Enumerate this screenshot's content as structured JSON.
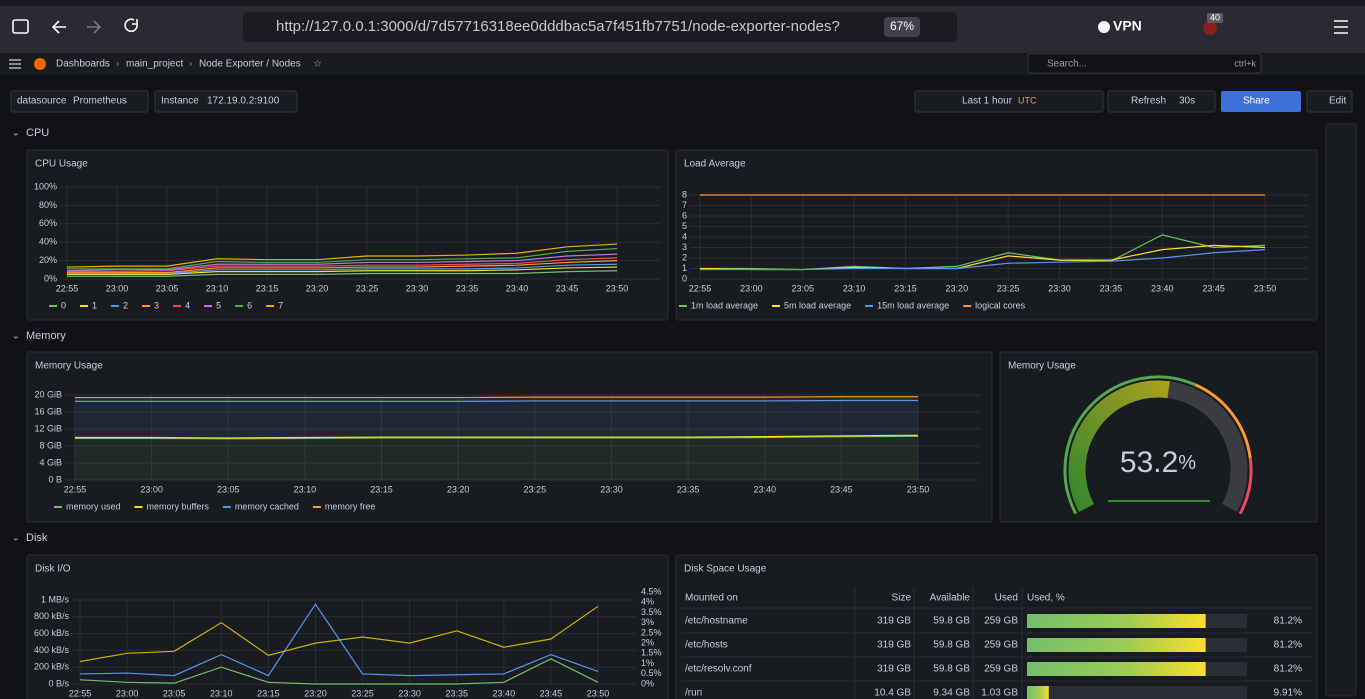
{
  "browser": {
    "url": "http://127.0.0.1:3000/d/7d57716318ee0dddbac5a7f451fb7751/node-exporter-nodes?",
    "zoom": "67%",
    "vpn": "VPN",
    "badge": "40"
  },
  "nav": {
    "breadcrumbs": [
      "Dashboards",
      "main_project",
      "Node Exporter / Nodes"
    ],
    "search": "Search...",
    "shortcut": "ctrl+k"
  },
  "toolbar": {
    "variables": [
      {
        "label": "datasource",
        "value": "Prometheus"
      },
      {
        "label": "Instance",
        "value": "172.19.0.2:9100"
      }
    ],
    "time_range": "Last 1 hour",
    "timezone": "UTC",
    "refresh": "Refresh",
    "interval": "30s",
    "share": "Share",
    "edit": "Edit"
  },
  "rows": [
    {
      "title": "CPU",
      "panels": [
        {
          "title": "CPU Usage",
          "type": "line",
          "categories": [
            "22:55",
            "23:00",
            "23:05",
            "23:10",
            "23:15",
            "23:20",
            "23:25",
            "23:30",
            "23:35",
            "23:40",
            "23:45",
            "23:50"
          ],
          "ylim": [
            0,
            100
          ],
          "yticks": [
            {
              "value": 0,
              "label": "0%"
            },
            {
              "value": 20,
              "label": "20%"
            },
            {
              "value": 40,
              "label": "40%"
            },
            {
              "value": 60,
              "label": "60%"
            },
            {
              "value": 80,
              "label": "80%"
            },
            {
              "value": 100,
              "label": "100%"
            }
          ],
          "grid": true,
          "series": [
            {
              "name": "0",
              "color": "#73bf69",
              "values": [
                3,
                3,
                3,
                5,
                5,
                5,
                6,
                6,
                6,
                6,
                8,
                9
              ]
            },
            {
              "name": "1",
              "color": "#fade2a",
              "values": [
                5,
                5,
                5,
                8,
                8,
                8,
                9,
                9,
                9,
                10,
                12,
                13
              ]
            },
            {
              "name": "2",
              "color": "#5794f2",
              "values": [
                6,
                6,
                6,
                10,
                10,
                10,
                11,
                11,
                11,
                12,
                15,
                16
              ]
            },
            {
              "name": "3",
              "color": "#ff9830",
              "values": [
                7,
                7,
                7,
                12,
                12,
                12,
                13,
                13,
                14,
                15,
                18,
                20
              ]
            },
            {
              "name": "4",
              "color": "#f2495c",
              "values": [
                8,
                8,
                9,
                14,
                14,
                14,
                15,
                15,
                16,
                17,
                21,
                23
              ]
            },
            {
              "name": "5",
              "color": "#b877d9",
              "values": [
                9,
                10,
                10,
                16,
                16,
                16,
                18,
                18,
                19,
                20,
                25,
                27
              ]
            },
            {
              "name": "6",
              "color": "#56a64b",
              "values": [
                11,
                11,
                11,
                19,
                18,
                18,
                21,
                21,
                22,
                23,
                30,
                33
              ]
            },
            {
              "name": "7",
              "color": "#e0b400",
              "values": [
                13,
                14,
                14,
                22,
                21,
                21,
                25,
                25,
                26,
                28,
                35,
                38
              ]
            }
          ]
        },
        {
          "title": "Load Average",
          "type": "line",
          "categories": [
            "22:55",
            "23:00",
            "23:05",
            "23:10",
            "23:15",
            "23:20",
            "23:25",
            "23:30",
            "23:35",
            "23:40",
            "23:45",
            "23:50"
          ],
          "ylim": [
            0,
            8
          ],
          "yticks": [
            0,
            1,
            2,
            3,
            4,
            5,
            6,
            7,
            8
          ],
          "grid": true,
          "series": [
            {
              "name": "1m load average",
              "color": "#73bf69",
              "values": [
                1.0,
                1.0,
                0.9,
                1.2,
                1.0,
                1.2,
                2.5,
                1.8,
                1.7,
                4.2,
                3.0,
                3.2
              ]
            },
            {
              "name": "5m load average",
              "color": "#fade2a",
              "values": [
                1.0,
                0.9,
                0.9,
                1.1,
                1.0,
                1.0,
                2.2,
                1.8,
                1.8,
                2.8,
                3.2,
                3.0
              ]
            },
            {
              "name": "15m load average",
              "color": "#5794f2",
              "values": [
                0.9,
                0.9,
                0.9,
                1.0,
                1.0,
                1.0,
                1.5,
                1.6,
                1.7,
                2.0,
                2.5,
                2.8
              ]
            },
            {
              "name": "logical cores",
              "color": "#ff9830",
              "values": [
                8,
                8,
                8,
                8,
                8,
                8,
                8,
                8,
                8,
                8,
                8,
                8
              ]
            }
          ]
        }
      ]
    },
    {
      "title": "Memory",
      "panels": [
        {
          "title": "Memory Usage",
          "type": "area",
          "stacked": true,
          "categories": [
            "22:55",
            "23:00",
            "23:05",
            "23:10",
            "23:15",
            "23:20",
            "23:25",
            "23:30",
            "23:35",
            "23:40",
            "23:45",
            "23:50"
          ],
          "ylim": [
            0,
            20
          ],
          "yticks": [
            {
              "value": 0,
              "label": "0 B"
            },
            {
              "value": 4,
              "label": "4 GiB"
            },
            {
              "value": 8,
              "label": "8 GiB"
            },
            {
              "value": 12,
              "label": "12 GiB"
            },
            {
              "value": 16,
              "label": "16 GiB"
            },
            {
              "value": 20,
              "label": "20 GiB"
            }
          ],
          "grid": true,
          "series": [
            {
              "name": "memory used",
              "color": "#73bf69",
              "values": [
                9.8,
                9.8,
                9.7,
                9.8,
                9.9,
                9.9,
                9.9,
                9.9,
                9.9,
                10.0,
                10.2,
                10.3
              ]
            },
            {
              "name": "memory buffers",
              "color": "#fade2a",
              "values": [
                0.2,
                0.2,
                0.2,
                0.2,
                0.2,
                0.2,
                0.2,
                0.2,
                0.2,
                0.2,
                0.2,
                0.2
              ]
            },
            {
              "name": "memory cached",
              "color": "#5794f2",
              "values": [
                8.5,
                8.5,
                8.6,
                8.5,
                8.4,
                8.4,
                8.5,
                8.5,
                8.5,
                8.4,
                8.3,
                8.2
              ]
            },
            {
              "name": "memory free",
              "color": "#ff9830",
              "values": [
                0.9,
                0.9,
                0.9,
                0.9,
                0.9,
                0.9,
                0.9,
                0.9,
                0.9,
                0.9,
                0.9,
                0.9
              ]
            }
          ]
        },
        {
          "title": "Memory Usage",
          "type": "gauge",
          "value": 53.2,
          "unit": "%",
          "lim": [
            0,
            100
          ]
        }
      ]
    },
    {
      "title": "Disk",
      "panels": [
        {
          "title": "Disk I/O",
          "type": "line",
          "categories": [
            "22:55",
            "23:00",
            "23:05",
            "23:10",
            "23:15",
            "23:20",
            "23:25",
            "23:30",
            "23:35",
            "23:40",
            "23:45",
            "23:50"
          ],
          "ylim": [
            0,
            1000
          ],
          "yticks": [
            {
              "value": 0,
              "label": "0 B/s"
            },
            {
              "value": 200,
              "label": "200 kB/s"
            },
            {
              "value": 400,
              "label": "400 kB/s"
            },
            {
              "value": 600,
              "label": "600 kB/s"
            },
            {
              "value": 800,
              "label": "800 kB/s"
            },
            {
              "value": 1000,
              "label": "1 MB/s"
            }
          ],
          "y2lim": [
            0,
            4.5
          ],
          "y2ticks": [
            {
              "value": 0,
              "label": "0%"
            },
            {
              "value": 0.5,
              "label": "0.5%"
            },
            {
              "value": 1,
              "label": "1%"
            },
            {
              "value": 1.5,
              "label": "1.5%"
            },
            {
              "value": 2,
              "label": "2%"
            },
            {
              "value": 2.5,
              "label": "2.5%"
            },
            {
              "value": 3,
              "label": "3%"
            },
            {
              "value": 3.5,
              "label": "3.5%"
            },
            {
              "value": 4,
              "label": "4%"
            },
            {
              "value": 4.5,
              "label": "4.5%"
            }
          ],
          "grid": true,
          "series": [
            {
              "color": "#73bf69",
              "values": [
                50,
                20,
                10,
                200,
                20,
                0,
                0,
                0,
                0,
                20,
                300,
                20
              ]
            },
            {
              "color": "#5794f2",
              "values": [
                120,
                130,
                100,
                350,
                100,
                950,
                120,
                100,
                110,
                120,
                350,
                150
              ]
            },
            {
              "color": "#c8b400",
              "axis": "y2",
              "values": [
                1.1,
                1.5,
                1.6,
                3.0,
                1.4,
                2.0,
                2.3,
                2.0,
                2.6,
                1.8,
                2.2,
                3.8
              ]
            }
          ]
        },
        {
          "title": "Disk Space Usage",
          "type": "table",
          "columns": [
            "Mounted on",
            "Size",
            "Available",
            "Used",
            "Used, %"
          ],
          "bar_lim": [
            0,
            100
          ],
          "rows": [
            [
              "/etc/hostname",
              "319 GB",
              "59.8 GB",
              "259 GB",
              {
                "value": 81.2,
                "label": "81.2%"
              }
            ],
            [
              "/etc/hosts",
              "319 GB",
              "59.8 GB",
              "259 GB",
              {
                "value": 81.2,
                "label": "81.2%"
              }
            ],
            [
              "/etc/resolv.conf",
              "319 GB",
              "59.8 GB",
              "259 GB",
              {
                "value": 81.2,
                "label": "81.2%"
              }
            ],
            [
              "/run",
              "10.4 GB",
              "9.34 GB",
              "1.03 GB",
              {
                "value": 9.91,
                "label": "9.91%"
              }
            ]
          ]
        }
      ]
    }
  ]
}
